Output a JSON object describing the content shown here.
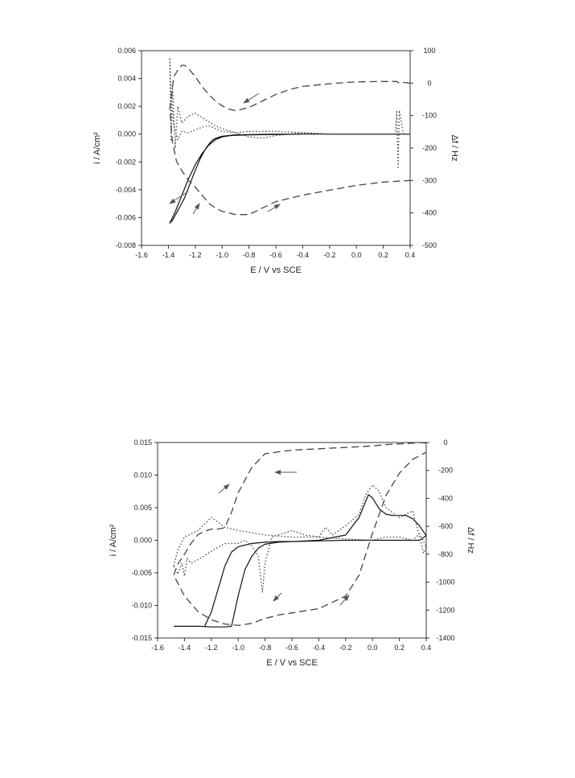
{
  "chart_data": [
    {
      "type": "line",
      "xlabel": "E / V vs SCE",
      "ylabel_left": "i / A/cm²",
      "ylabel_right": "Δf / Hz",
      "xlim": [
        -1.6,
        0.4
      ],
      "ylim_left": [
        -0.008,
        0.006
      ],
      "ylim_right": [
        -500,
        100
      ],
      "xticks": [
        "-1.6",
        "-1.4",
        "-1.2",
        "-1.0",
        "-0.8",
        "-0.6",
        "-0.4",
        "-0.2",
        "0.0",
        "0.2",
        "0.4"
      ],
      "yticks_left": [
        "-0.008",
        "-0.006",
        "-0.004",
        "-0.002",
        "0.000",
        "0.002",
        "0.004",
        "0.006"
      ],
      "yticks_right": [
        "-500",
        "-400",
        "-300",
        "-200",
        "-100",
        "0",
        "100"
      ],
      "series": [
        {
          "style": "solid",
          "axis": "left",
          "x": [
            0.4,
            0.2,
            0.0,
            -0.2,
            -0.4,
            -0.6,
            -0.8,
            -0.9,
            -0.95,
            -1.0,
            -1.05,
            -1.1,
            -1.15,
            -1.2,
            -1.25,
            -1.3,
            -1.35,
            -1.39,
            -1.37,
            -1.33,
            -1.28,
            -1.24,
            -1.2,
            -1.16,
            -1.12,
            -1.08,
            -1.05,
            -1.0,
            -0.9,
            -0.6,
            0.0,
            0.4
          ],
          "y": [
            0.0,
            0.0,
            0.0,
            0.0,
            0.0,
            -2e-05,
            -5e-05,
            -8e-05,
            -0.00012,
            -0.0002,
            -0.0004,
            -0.0008,
            -0.0014,
            -0.0022,
            -0.0032,
            -0.0044,
            -0.0056,
            -0.0064,
            -0.0062,
            -0.0055,
            -0.0046,
            -0.0036,
            -0.0026,
            -0.0017,
            -0.001,
            -0.0005,
            -0.0003,
            -0.00015,
            -5e-05,
            0.0,
            0.0,
            0.0
          ]
        },
        {
          "style": "dotted",
          "axis": "left",
          "x": [
            0.4,
            0.35,
            0.32,
            0.31,
            0.3,
            0.29,
            0.2,
            0.0,
            -0.2,
            -0.4,
            -0.6,
            -0.7,
            -0.8,
            -0.9,
            -1.0,
            -1.05,
            -1.1,
            -1.15,
            -1.2,
            -1.25,
            -1.3,
            -1.33,
            -1.35,
            -1.37,
            -1.38,
            -1.39,
            -1.38,
            -1.36,
            -1.33,
            -1.3,
            -1.25,
            -1.2,
            -1.15,
            -1.1,
            -1.05,
            -1.0,
            -0.9,
            -0.8,
            -0.7,
            -0.6,
            -0.4,
            -0.2,
            0.0,
            0.2,
            0.4
          ],
          "y": [
            0.0,
            0.0,
            0.0017,
            -0.0025,
            0.0017,
            0.0,
            0.0,
            0.0,
            0.0,
            0.0001,
            -0.0001,
            -0.0003,
            -0.0002,
            0.0001,
            0.0004,
            0.0006,
            0.0009,
            0.0012,
            0.0015,
            0.0013,
            0.0008,
            0.002,
            -0.001,
            0.0035,
            -0.0005,
            0.0055,
            0.0025,
            0.0006,
            -0.0004,
            0.0002,
            0.0001,
            0.0003,
            0.0005,
            0.0006,
            0.0004,
            0.0002,
            0.0001,
            0.0002,
            0.0002,
            0.0002,
            0.0001,
            0.0,
            0.0,
            0.0,
            0.0
          ]
        },
        {
          "style": "dashed",
          "axis": "right",
          "x": [
            0.4,
            0.35,
            0.32,
            0.3,
            0.2,
            0.0,
            -0.2,
            -0.4,
            -0.5,
            -0.6,
            -0.7,
            -0.8,
            -0.9,
            -0.95,
            -1.0,
            -1.05,
            -1.1,
            -1.15,
            -1.2,
            -1.25,
            -1.28,
            -1.3,
            -1.33,
            -1.36,
            -1.39,
            -1.37,
            -1.34,
            -1.3,
            -1.25,
            -1.2,
            -1.15,
            -1.1,
            -1.05,
            -1.0,
            -0.9,
            -0.8,
            -0.7,
            -0.6,
            -0.4,
            -0.2,
            0.0,
            0.2,
            0.4
          ],
          "y": [
            0,
            2,
            0,
            5,
            5,
            4,
            -2,
            -10,
            -20,
            -35,
            -55,
            -75,
            -85,
            -80,
            -70,
            -55,
            -35,
            -10,
            20,
            45,
            55,
            55,
            40,
            20,
            -80,
            -180,
            -240,
            -270,
            -300,
            -320,
            -345,
            -370,
            -385,
            -395,
            -405,
            -405,
            -385,
            -365,
            -345,
            -330,
            -315,
            -305,
            -300
          ]
        }
      ]
    },
    {
      "type": "line",
      "xlabel": "E / V vs SCE",
      "ylabel_left": "i / A/cm²",
      "ylabel_right": "Δf / Hz",
      "xlim": [
        -1.6,
        0.4
      ],
      "ylim_left": [
        -0.015,
        0.015
      ],
      "ylim_right": [
        -1400,
        0
      ],
      "xticks": [
        "-1.6",
        "-1.4",
        "-1.2",
        "-1.0",
        "-0.8",
        "-0.6",
        "-0.4",
        "-0.2",
        "0.0",
        "0.2",
        "0.4"
      ],
      "yticks_left": [
        "-0.015",
        "-0.010",
        "-0.005",
        "0.000",
        "0.005",
        "0.010",
        "0.015"
      ],
      "yticks_right": [
        "-1400",
        "-1200",
        "-1000",
        "-800",
        "-600",
        "-400",
        "-200",
        "0"
      ],
      "series": [
        {
          "style": "solid",
          "axis": "left",
          "x": [
            -1.48,
            -1.3,
            -1.2,
            -1.1,
            -1.05,
            -1.0,
            -0.95,
            -0.9,
            -0.85,
            -0.8,
            -0.7,
            -0.6,
            -0.4,
            -0.2,
            -0.1,
            -0.05,
            -0.03,
            0.0,
            0.05,
            0.1,
            0.15,
            0.2,
            0.25,
            0.3,
            0.35,
            0.4,
            0.35,
            0.2,
            0.0,
            -0.2,
            -0.4,
            -0.6,
            -0.7,
            -0.8,
            -0.9,
            -1.0,
            -1.05,
            -1.1,
            -1.15,
            -1.2,
            -1.25
          ],
          "y": [
            -0.0132,
            -0.0132,
            -0.0133,
            -0.0133,
            -0.0132,
            -0.0085,
            -0.0045,
            -0.0025,
            -0.0012,
            -0.0006,
            -0.0003,
            -0.0002,
            0.0,
            0.0008,
            0.0035,
            0.006,
            0.007,
            0.0065,
            0.0048,
            0.004,
            0.0038,
            0.0038,
            0.0038,
            0.0033,
            0.0022,
            0.0007,
            0.0,
            0.0,
            0.0,
            0.0,
            -0.0001,
            -0.0002,
            -0.0002,
            -0.0003,
            -0.0005,
            -0.001,
            -0.0018,
            -0.004,
            -0.0075,
            -0.011,
            -0.0132
          ]
        },
        {
          "style": "dotted",
          "axis": "left",
          "x": [
            -1.48,
            -1.45,
            -1.42,
            -1.4,
            -1.38,
            -1.35,
            -1.3,
            -1.2,
            -1.1,
            -1.0,
            -0.95,
            -0.9,
            -0.85,
            -0.82,
            -0.8,
            -0.75,
            -0.7,
            -0.6,
            -0.5,
            -0.4,
            -0.35,
            -0.3,
            -0.2,
            -0.1,
            -0.05,
            0.0,
            0.05,
            0.1,
            0.2,
            0.3,
            0.35,
            0.38,
            0.4,
            0.35,
            0.3,
            0.2,
            0.1,
            0.0,
            -0.2,
            -0.4,
            -0.5,
            -0.6,
            -0.8,
            -1.0,
            -1.1,
            -1.2,
            -1.3,
            -1.4,
            -1.45,
            -1.48
          ],
          "y": [
            -0.004,
            -0.0052,
            -0.0035,
            -0.0055,
            -0.0028,
            -0.0035,
            -0.003,
            -0.0017,
            -0.0005,
            -0.0005,
            0.0,
            -0.0008,
            -0.0025,
            -0.008,
            -0.0035,
            0.0005,
            0.0008,
            0.0015,
            0.0008,
            0.0005,
            0.002,
            0.0008,
            0.0022,
            0.004,
            0.007,
            0.0085,
            0.0075,
            0.005,
            0.0035,
            0.0045,
            0.0005,
            -0.002,
            -0.001,
            0.001,
            0.0,
            0.0005,
            0.0005,
            0.0,
            0.0002,
            0.0005,
            0.0005,
            0.0005,
            0.0008,
            0.0015,
            0.002,
            0.0035,
            0.0015,
            0.0005,
            -0.0015,
            -0.004
          ]
        },
        {
          "style": "dashed",
          "axis": "right",
          "x": [
            0.4,
            0.35,
            0.3,
            0.2,
            0.1,
            0.0,
            -0.2,
            -0.4,
            -0.6,
            -0.8,
            -0.9,
            -1.0,
            -1.05,
            -1.1,
            -1.15,
            -1.2,
            -1.25,
            -1.3,
            -1.35,
            -1.4,
            -1.45,
            -1.48,
            -1.4,
            -1.3,
            -1.2,
            -1.1,
            -1.0,
            -0.9,
            -0.8,
            -0.7,
            -0.6,
            -0.4,
            -0.2,
            -0.1,
            0.0,
            0.1,
            0.2,
            0.3,
            0.4
          ],
          "y": [
            -5,
            0,
            -5,
            -10,
            -15,
            -25,
            -35,
            -45,
            -55,
            -80,
            -180,
            -360,
            -500,
            -610,
            -620,
            -620,
            -635,
            -660,
            -720,
            -800,
            -870,
            -950,
            -1100,
            -1210,
            -1270,
            -1300,
            -1310,
            -1295,
            -1260,
            -1235,
            -1220,
            -1190,
            -1100,
            -950,
            -650,
            -380,
            -220,
            -120,
            -70
          ]
        }
      ]
    }
  ]
}
